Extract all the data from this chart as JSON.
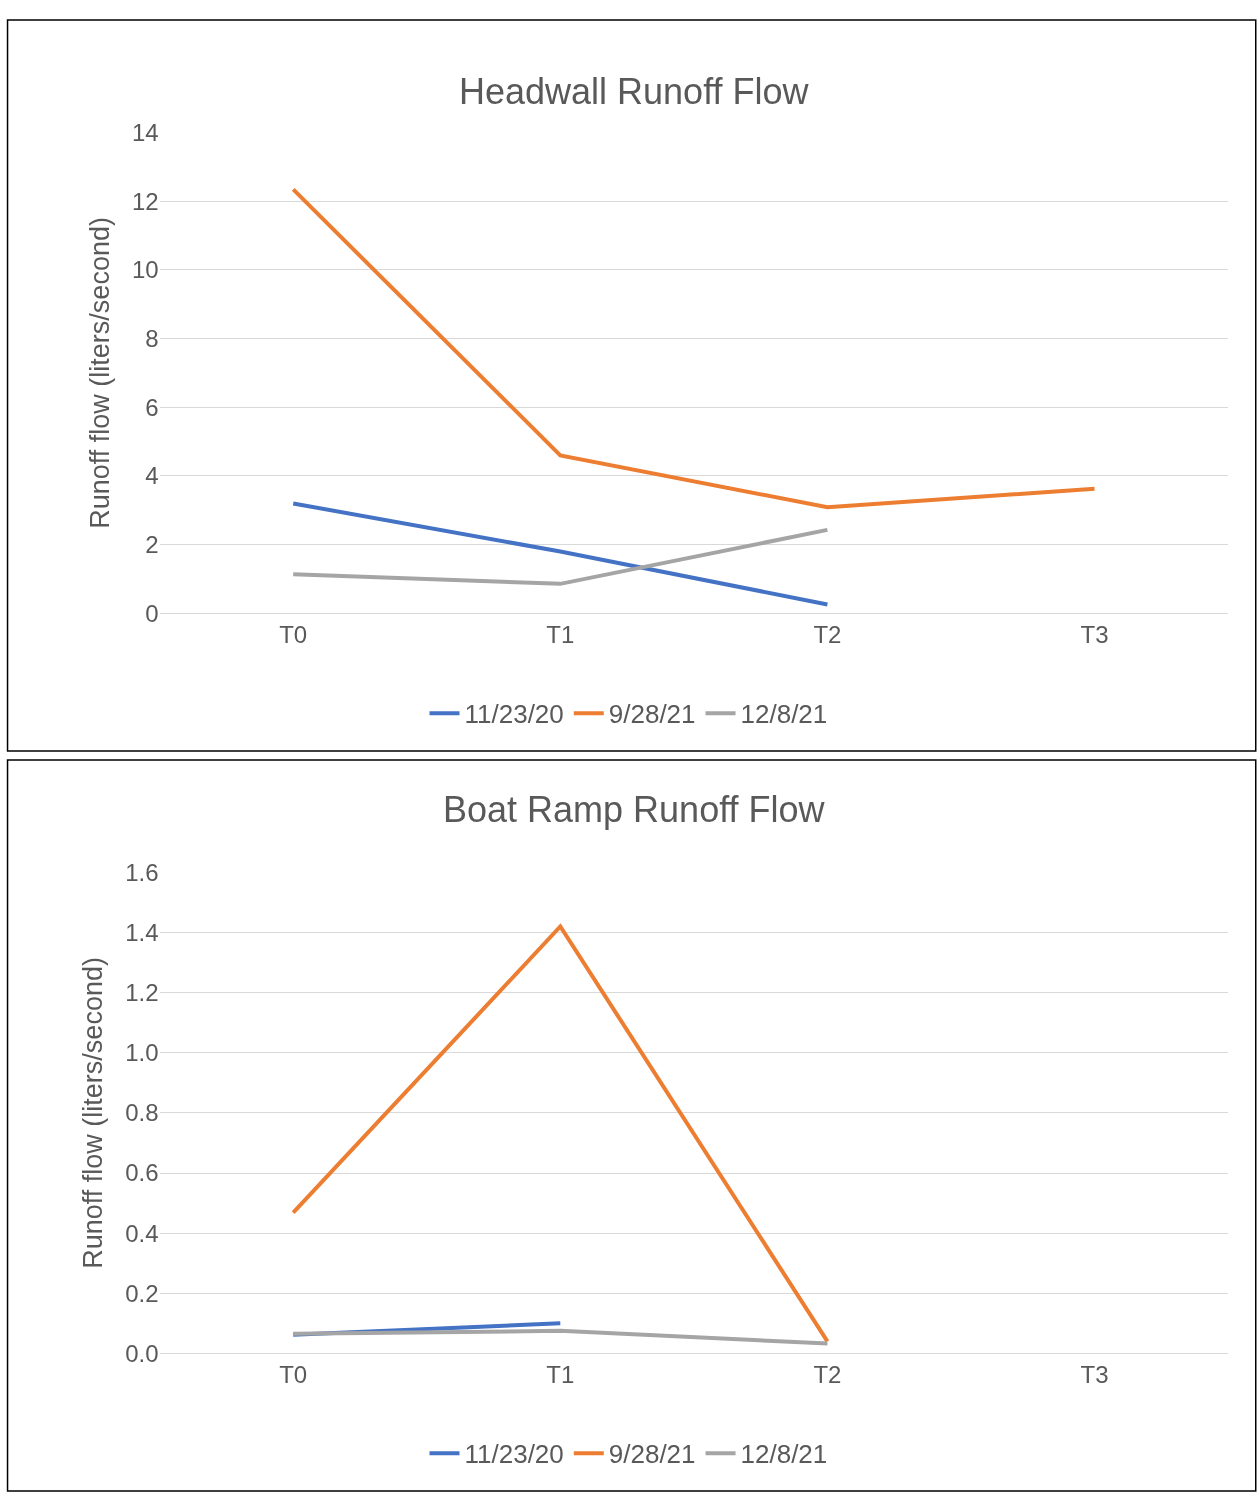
{
  "chart_data": [
    {
      "type": "line",
      "title": "Headwall Runoff Flow",
      "ylabel": "Runoff flow (liters/second)",
      "categories": [
        "T0",
        "T1",
        "T2",
        "T3"
      ],
      "series": [
        {
          "name": "11/23/20",
          "color": "#4472c4",
          "values": [
            3.2,
            1.8,
            0.26,
            null
          ]
        },
        {
          "name": "9/28/21",
          "color": "#ed7d31",
          "values": [
            12.34,
            4.6,
            3.09,
            3.63
          ]
        },
        {
          "name": "12/8/21",
          "color": "#a5a5a5",
          "values": [
            1.14,
            0.86,
            2.43,
            null
          ]
        }
      ],
      "ylim": [
        0,
        14
      ],
      "yticks": [
        0,
        2,
        4,
        6,
        8,
        10,
        12,
        14
      ],
      "grid": "y",
      "legend": "bottom"
    },
    {
      "type": "line",
      "title": "Boat Ramp Runoff Flow",
      "ylabel": "Runoff flow (liters/second)",
      "categories": [
        "T0",
        "T1",
        "T2",
        "T3"
      ],
      "series": [
        {
          "name": "11/23/20",
          "color": "#4472c4",
          "values": [
            0.062,
            0.1,
            null,
            null
          ]
        },
        {
          "name": "9/28/21",
          "color": "#ed7d31",
          "values": [
            0.468,
            1.42,
            0.04,
            null
          ]
        },
        {
          "name": "12/8/21",
          "color": "#a5a5a5",
          "values": [
            0.065,
            0.075,
            0.033,
            null
          ]
        }
      ],
      "ylim": [
        0,
        1.6
      ],
      "yticks": [
        {
          "value": 0,
          "label": "0.0"
        },
        {
          "value": 0.2,
          "label": "0.2"
        },
        {
          "value": 0.4,
          "label": "0.4"
        },
        {
          "value": 0.6,
          "label": "0.6"
        },
        {
          "value": 0.8,
          "label": "0.8"
        },
        {
          "value": 1.0,
          "label": "1.0"
        },
        {
          "value": 1.2,
          "label": "1.2"
        },
        {
          "value": 1.4,
          "label": "1.4"
        },
        {
          "value": 1.6,
          "label": "1.6"
        }
      ],
      "grid": "y",
      "legend": "bottom"
    }
  ]
}
